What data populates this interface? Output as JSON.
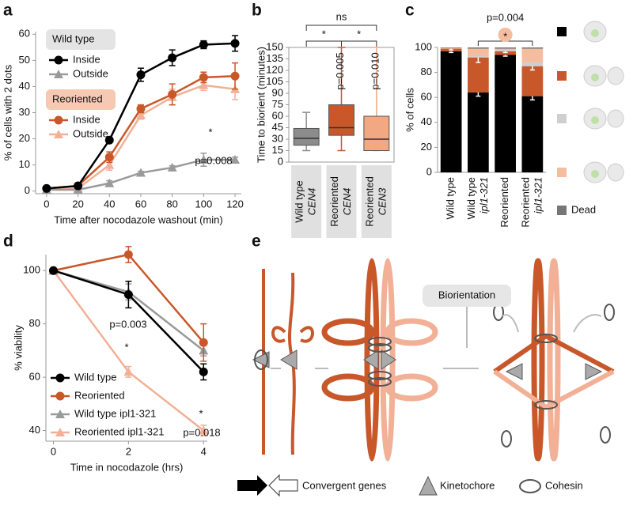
{
  "chart_data": [
    {
      "type": "line",
      "panel_label": "a",
      "xlabel": "Time after nocodazole washout (min)",
      "ylabel": "% of cells with 2 dots",
      "x": [
        0,
        20,
        40,
        60,
        80,
        100,
        120
      ],
      "xlim": [
        -7,
        124
      ],
      "ylim": [
        -1,
        61
      ],
      "xticks": [
        0,
        20,
        40,
        60,
        80,
        100,
        120
      ],
      "yticks": [
        0,
        10,
        20,
        30,
        40,
        50,
        60
      ],
      "legend_groups": [
        {
          "title": "Wild type",
          "color": "#e4e4e4",
          "series": [
            {
              "name": "Inside",
              "color": "#000000",
              "marker": "circle",
              "values": [
                1,
                2,
                19.5,
                44.5,
                51,
                56,
                56.5
              ],
              "errors": [
                0.5,
                0.5,
                0.5,
                2.5,
                3,
                1.5,
                3
              ]
            },
            {
              "name": "Outside",
              "color": "#9a9a9a",
              "marker": "triangle",
              "values": [
                0.5,
                0.5,
                3,
                7,
                9,
                12,
                12
              ],
              "errors": [
                0.3,
                0.3,
                1,
                0.5,
                0.7,
                2.5,
                1
              ]
            }
          ]
        },
        {
          "title": "Reoriented",
          "color": "#f6c9b3",
          "series": [
            {
              "name": "Inside",
              "color": "#c8582a",
              "marker": "circle",
              "values": [
                1,
                2,
                13,
                31.5,
                37,
                43.5,
                44
              ],
              "errors": [
                0.5,
                0.5,
                2,
                1.5,
                4,
                2,
                5
              ]
            },
            {
              "name": "Outside",
              "color": "#f2b096",
              "marker": "triangle",
              "values": [
                0.5,
                1,
                10,
                29,
                36,
                40.5,
                39
              ],
              "errors": [
                0.5,
                0.5,
                2,
                1.5,
                3,
                2,
                4
              ]
            }
          ]
        }
      ],
      "annotations": [
        "*",
        "p=0.008"
      ]
    },
    {
      "type": "box",
      "panel_label": "b",
      "ylabel": "Time to biorient (minutes)",
      "categories": [
        [
          "Wild type",
          "CEN4"
        ],
        [
          "Reoriented",
          "CEN4"
        ],
        [
          "Reoriented",
          "CEN3"
        ]
      ],
      "colors": [
        "#8c8c8c",
        "#c8582a",
        "#f2a882"
      ],
      "boxes": [
        {
          "whislo": 15,
          "q1": 22,
          "med": 31,
          "q3": 44,
          "whishi": 65
        },
        {
          "whislo": 15,
          "q1": 35,
          "med": 45,
          "q3": 75,
          "whishi": 150
        },
        {
          "whislo": 15,
          "q1": 15,
          "med": 30,
          "q3": 60,
          "whishi": 150
        }
      ],
      "ylim": [
        0,
        150
      ],
      "yticks": [
        0,
        15,
        30,
        45,
        60,
        75,
        90,
        105,
        120,
        135,
        150
      ],
      "annotations": [
        "ns",
        "*",
        "*",
        "p=0.005",
        "p=0.010"
      ]
    },
    {
      "type": "stacked_bar",
      "panel_label": "c",
      "ylabel": "% of cells",
      "categories": [
        [
          "Wild type"
        ],
        [
          "Wild type",
          "ipl1-321"
        ],
        [
          "Reoriented"
        ],
        [
          "Reoriented",
          "ipl1-321"
        ]
      ],
      "series": [
        {
          "color": "#000000",
          "values": [
            97,
            64,
            94,
            61
          ],
          "errors": [
            1,
            3,
            1,
            3
          ]
        },
        {
          "color": "#c8582a",
          "values": [
            2,
            28,
            3,
            24
          ],
          "errors": [
            1,
            4,
            1,
            3
          ]
        },
        {
          "color": "#cfcfcf",
          "values": [
            0,
            1,
            1,
            3
          ]
        },
        {
          "color": "#f6bca0",
          "values": [
            0.5,
            6,
            1,
            11
          ]
        },
        {
          "name": "Dead",
          "color": "#777777",
          "values": [
            0.5,
            1,
            1,
            1
          ]
        }
      ],
      "ylim": [
        0,
        100
      ],
      "yticks": [
        0,
        20,
        40,
        60,
        80,
        100
      ],
      "annotations": [
        "p=0.004",
        "*"
      ]
    },
    {
      "type": "line",
      "panel_label": "d",
      "xlabel": "Time in nocodazole (hrs)",
      "ylabel": "% viability",
      "x": [
        0,
        2,
        4
      ],
      "xlim": [
        -0.2,
        4.1
      ],
      "ylim": [
        36,
        106
      ],
      "xticks": [
        0,
        2,
        4
      ],
      "yticks": [
        40,
        60,
        80,
        100
      ],
      "series": [
        {
          "name": "Wild type",
          "color": "#000000",
          "marker": "circle",
          "values": [
            100,
            91,
            62
          ],
          "errors": [
            0,
            5,
            3
          ]
        },
        {
          "name": "Reoriented",
          "color": "#c8582a",
          "marker": "circle",
          "values": [
            100,
            106,
            73
          ],
          "errors": [
            0,
            3,
            7
          ]
        },
        {
          "name": "Wild type ipl1-321",
          "color": "#9a9a9a",
          "marker": "triangle",
          "values": [
            100,
            92,
            70
          ],
          "errors": [
            0,
            3,
            2
          ]
        },
        {
          "name": "Reoriented ipl1-321",
          "color": "#f2b096",
          "marker": "triangle",
          "values": [
            100,
            62,
            40
          ],
          "errors": [
            0,
            2,
            2
          ]
        }
      ],
      "annotations": [
        "p=0.003",
        "*",
        "*",
        "p=0.018"
      ]
    }
  ],
  "diagram": {
    "panel_label": "e",
    "label": "Biorientation",
    "legend": [
      "Convergent genes",
      "Kinetochore",
      "Cohesin"
    ]
  }
}
